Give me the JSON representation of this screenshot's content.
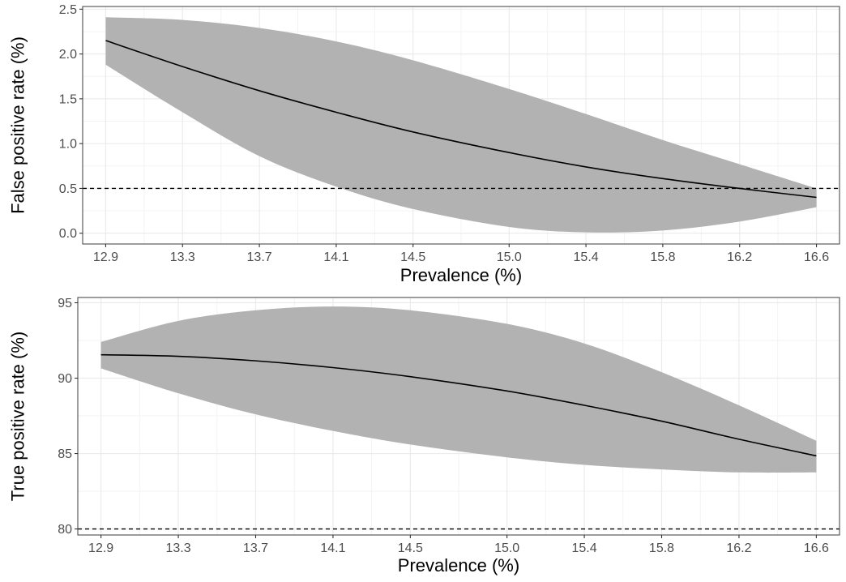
{
  "chart_data": [
    {
      "type": "area",
      "title": "",
      "xlabel": "Prevalence (%)",
      "ylabel": "False positive rate (%)",
      "xlim": [
        12.78,
        16.72
      ],
      "ylim": [
        -0.12,
        2.53
      ],
      "xticks": [
        12.9,
        13.3,
        13.7,
        14.1,
        14.5,
        15.0,
        15.4,
        15.8,
        16.2,
        16.6
      ],
      "xtick_labels": [
        "12.9",
        "13.3",
        "13.7",
        "14.1",
        "14.5",
        "15.0",
        "15.4",
        "15.8",
        "16.2",
        "16.6"
      ],
      "yticks": [
        0.0,
        0.5,
        1.0,
        1.5,
        2.0,
        2.5
      ],
      "ytick_labels": [
        "0.0",
        "0.5",
        "1.0",
        "1.5",
        "2.0",
        "2.5"
      ],
      "grid": true,
      "reference_line": {
        "y": 0.5,
        "style": "dashed"
      },
      "x": [
        12.9,
        13.3,
        13.7,
        14.1,
        14.5,
        15.0,
        15.4,
        15.8,
        16.2,
        16.6
      ],
      "series": [
        {
          "name": "estimate",
          "values": [
            2.15,
            1.86,
            1.59,
            1.35,
            1.13,
            0.9,
            0.74,
            0.61,
            0.5,
            0.4
          ]
        },
        {
          "name": "upper",
          "values": [
            2.41,
            2.38,
            2.29,
            2.14,
            1.93,
            1.61,
            1.33,
            1.04,
            0.77,
            0.5
          ]
        },
        {
          "name": "lower",
          "values": [
            1.88,
            1.35,
            0.86,
            0.52,
            0.27,
            0.07,
            0.01,
            0.03,
            0.13,
            0.29
          ]
        }
      ],
      "colors": {
        "band": "#b2b2b2",
        "line": "#000000",
        "grid": "#ebebeb",
        "border": "#4d4d4d"
      }
    },
    {
      "type": "area",
      "title": "",
      "xlabel": "Prevalence (%)",
      "ylabel": "True positive rate (%)",
      "xlim": [
        12.78,
        16.72
      ],
      "ylim": [
        79.6,
        95.35
      ],
      "xticks": [
        12.9,
        13.3,
        13.7,
        14.1,
        14.5,
        15.0,
        15.4,
        15.8,
        16.2,
        16.6
      ],
      "xtick_labels": [
        "12.9",
        "13.3",
        "13.7",
        "14.1",
        "14.5",
        "15.0",
        "15.4",
        "15.8",
        "16.2",
        "16.6"
      ],
      "yticks": [
        80,
        85,
        90,
        95
      ],
      "ytick_labels": [
        "80",
        "85",
        "90",
        "95"
      ],
      "grid": true,
      "reference_line": {
        "y": 80,
        "style": "dashed"
      },
      "x": [
        12.9,
        13.3,
        13.7,
        14.1,
        14.5,
        15.0,
        15.4,
        15.8,
        16.2,
        16.6
      ],
      "series": [
        {
          "name": "estimate",
          "values": [
            91.55,
            91.45,
            91.15,
            90.7,
            90.1,
            89.15,
            88.2,
            87.15,
            85.95,
            84.85
          ]
        },
        {
          "name": "upper",
          "values": [
            92.4,
            93.8,
            94.5,
            94.75,
            94.5,
            93.6,
            92.3,
            90.4,
            88.2,
            85.85
          ]
        },
        {
          "name": "lower",
          "values": [
            90.65,
            89.0,
            87.6,
            86.5,
            85.6,
            84.75,
            84.25,
            83.95,
            83.75,
            83.75
          ]
        }
      ],
      "colors": {
        "band": "#b2b2b2",
        "line": "#000000",
        "grid": "#ebebeb",
        "border": "#4d4d4d"
      }
    }
  ]
}
